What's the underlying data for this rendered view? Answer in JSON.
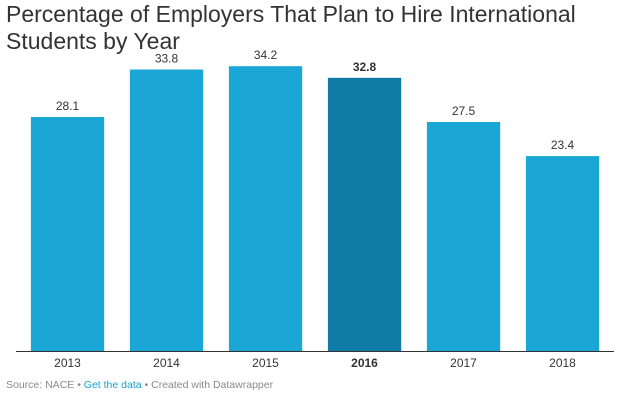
{
  "title": "Percentage of Employers That Plan to Hire International Students by Year",
  "footer": {
    "source": "Source: NACE",
    "sep": " • ",
    "get_data": "Get the data",
    "created": "Created with Datawrapper"
  },
  "colors": {
    "bar": "#1ba7d6",
    "highlight": "#0f7aa3",
    "axis": "#333333",
    "label": "#333333"
  },
  "chart_data": {
    "type": "bar",
    "title": "Percentage of Employers That Plan to Hire International Students by Year",
    "xlabel": "",
    "ylabel": "",
    "categories": [
      "2013",
      "2014",
      "2015",
      "2016",
      "2017",
      "2018"
    ],
    "values": [
      28.1,
      33.8,
      34.2,
      32.8,
      27.5,
      23.4
    ],
    "highlight": "2016",
    "ylim": [
      0,
      36.5
    ],
    "grid": false
  }
}
